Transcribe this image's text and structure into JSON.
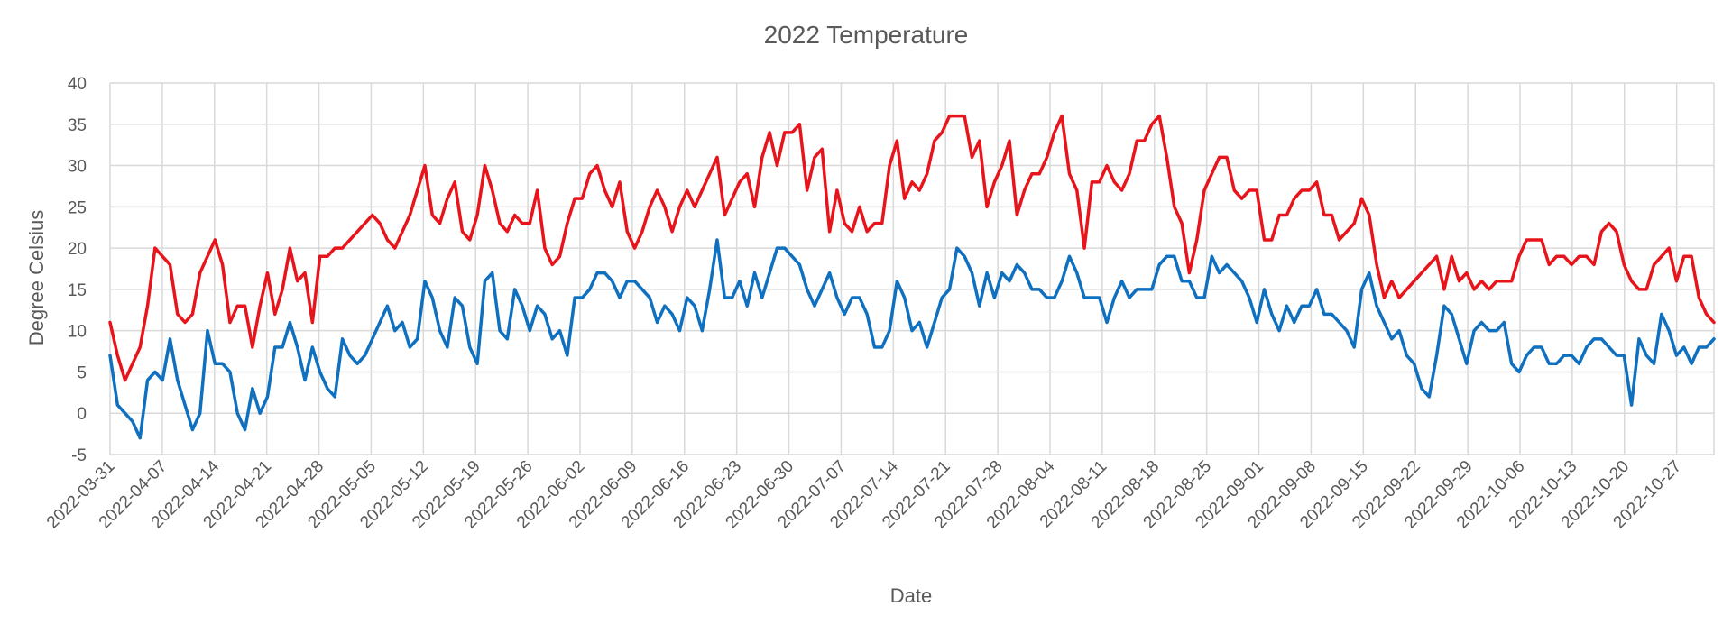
{
  "chart_data": {
    "type": "line",
    "title": "2022 Temperature",
    "xlabel": "Date",
    "ylabel": "Degree Celsius",
    "ylim": [
      -5,
      40
    ],
    "y_ticks": [
      -5,
      0,
      5,
      10,
      15,
      20,
      25,
      30,
      35,
      40
    ],
    "x_tick_labels": [
      "2022-03-31",
      "2022-04-07",
      "2022-04-14",
      "2022-04-21",
      "2022-04-28",
      "2022-05-05",
      "2022-05-12",
      "2022-05-19",
      "2022-05-26",
      "2022-06-02",
      "2022-06-09",
      "2022-06-16",
      "2022-06-23",
      "2022-06-30",
      "2022-07-07",
      "2022-07-14",
      "2022-07-21",
      "2022-07-28",
      "2022-08-04",
      "2022-08-11",
      "2022-08-18",
      "2022-08-25",
      "2022-09-01",
      "2022-09-08",
      "2022-09-15",
      "2022-09-22",
      "2022-09-29",
      "2022-10-06",
      "2022-10-13",
      "2022-10-20",
      "2022-10-27"
    ],
    "x_start": "2022-03-31",
    "x_end": "2022-11-01",
    "grid": true,
    "legend": "none",
    "series": [
      {
        "color": "#e8141b",
        "values": [
          11,
          7,
          4,
          6,
          8,
          13,
          20,
          19,
          18,
          12,
          11,
          12,
          17,
          19,
          21,
          18,
          11,
          13,
          13,
          8,
          13,
          17,
          12,
          15,
          20,
          16,
          17,
          11,
          19,
          19,
          20,
          20,
          21,
          22,
          23,
          24,
          23,
          21,
          20,
          22,
          24,
          27,
          30,
          24,
          23,
          26,
          28,
          22,
          21,
          24,
          30,
          27,
          23,
          22,
          24,
          23,
          23,
          27,
          20,
          18,
          19,
          23,
          26,
          26,
          29,
          30,
          27,
          25,
          28,
          22,
          20,
          22,
          25,
          27,
          25,
          22,
          25,
          27,
          25,
          27,
          29,
          31,
          24,
          26,
          28,
          29,
          25,
          31,
          34,
          30,
          34,
          34,
          35,
          27,
          31,
          32,
          22,
          27,
          23,
          22,
          25,
          22,
          23,
          23,
          30,
          33,
          26,
          28,
          27,
          29,
          33,
          34,
          36,
          36,
          36,
          31,
          33,
          25,
          28,
          30,
          33,
          24,
          27,
          29,
          29,
          31,
          34,
          36,
          29,
          27,
          20,
          28,
          28,
          30,
          28,
          27,
          29,
          33,
          33,
          35,
          36,
          31,
          25,
          23,
          17,
          21,
          27,
          29,
          31,
          31,
          27,
          26,
          27,
          27,
          21,
          21,
          24,
          24,
          26,
          27,
          27,
          28,
          24,
          24,
          21,
          22,
          23,
          26,
          24,
          18,
          14,
          16,
          14,
          15,
          16,
          17,
          18,
          19,
          15,
          19,
          16,
          17,
          15,
          16,
          15,
          16,
          16,
          16,
          19,
          21,
          21,
          21,
          18,
          19,
          19,
          18,
          19,
          19,
          18,
          22,
          23,
          22,
          18,
          16,
          15,
          15,
          18,
          19,
          20,
          16,
          19,
          19,
          14,
          12,
          11
        ]
      },
      {
        "color": "#0f70c0",
        "values": [
          7,
          1,
          0,
          -1,
          -3,
          4,
          5,
          4,
          9,
          4,
          1,
          -2,
          0,
          10,
          6,
          6,
          5,
          0,
          -2,
          3,
          0,
          2,
          8,
          8,
          11,
          8,
          4,
          8,
          5,
          3,
          2,
          9,
          7,
          6,
          7,
          9,
          11,
          13,
          10,
          11,
          8,
          9,
          16,
          14,
          10,
          8,
          14,
          13,
          8,
          6,
          16,
          17,
          10,
          9,
          15,
          13,
          10,
          13,
          12,
          9,
          10,
          7,
          14,
          14,
          15,
          17,
          17,
          16,
          14,
          16,
          16,
          15,
          14,
          11,
          13,
          12,
          10,
          14,
          13,
          10,
          15,
          21,
          14,
          14,
          16,
          13,
          17,
          14,
          17,
          20,
          20,
          19,
          18,
          15,
          13,
          15,
          17,
          14,
          12,
          14,
          14,
          12,
          8,
          8,
          10,
          16,
          14,
          10,
          11,
          8,
          11,
          14,
          15,
          20,
          19,
          17,
          13,
          17,
          14,
          17,
          16,
          18,
          17,
          15,
          15,
          14,
          14,
          16,
          19,
          17,
          14,
          14,
          14,
          11,
          14,
          16,
          14,
          15,
          15,
          15,
          18,
          19,
          19,
          16,
          16,
          14,
          14,
          19,
          17,
          18,
          17,
          16,
          14,
          11,
          15,
          12,
          10,
          13,
          11,
          13,
          13,
          15,
          12,
          12,
          11,
          10,
          8,
          15,
          17,
          13,
          11,
          9,
          10,
          7,
          6,
          3,
          2,
          7,
          13,
          12,
          9,
          6,
          10,
          11,
          10,
          10,
          11,
          6,
          5,
          7,
          8,
          8,
          6,
          6,
          7,
          7,
          6,
          8,
          9,
          9,
          8,
          7,
          7,
          1,
          9,
          7,
          6,
          12,
          10,
          7,
          8,
          6,
          8,
          8,
          9
        ]
      }
    ]
  }
}
